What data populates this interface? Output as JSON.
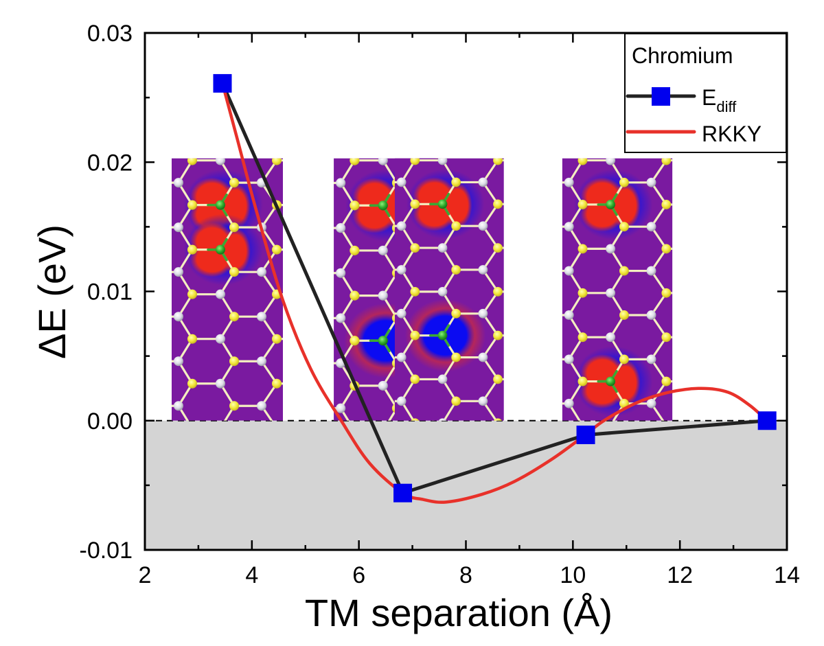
{
  "chart_data": {
    "type": "line",
    "title": "",
    "xlabel": "TM separation (Å)",
    "ylabel": "ΔE (eV)",
    "xlim": [
      2,
      14
    ],
    "ylim": [
      -0.01,
      0.03
    ],
    "xticks": [
      2,
      4,
      6,
      8,
      10,
      12,
      14
    ],
    "xtick_labels": [
      "2",
      "4",
      "6",
      "8",
      "10",
      "12",
      "14"
    ],
    "yticks": [
      -0.01,
      0.0,
      0.01,
      0.02,
      0.03
    ],
    "ytick_labels": [
      "-0.01",
      "0.00",
      "0.01",
      "0.02",
      "0.03"
    ],
    "grid": false,
    "zero_line": {
      "y": 0.0,
      "style": "dashed"
    },
    "negative_region_shaded": true,
    "shade_color": "#d4d4d4",
    "legend": {
      "position": "top-right",
      "title": "Chromium",
      "entries": [
        {
          "label_main": "E",
          "label_sub": "diff",
          "color": "#222222",
          "marker": "square",
          "marker_color": "#0000ee"
        },
        {
          "label_main": "RKKY",
          "label_sub": "",
          "color": "#e8312a",
          "marker": "none"
        }
      ]
    },
    "series": [
      {
        "name": "E_diff",
        "style": "line+square-markers",
        "line_color": "#222222",
        "marker_color": "#0000ee",
        "x": [
          3.45,
          6.82,
          10.24,
          13.63
        ],
        "y": [
          0.0261,
          -0.0056,
          -0.0011,
          0.0
        ]
      },
      {
        "name": "RKKY",
        "style": "smooth-line",
        "line_color": "#e8312a",
        "x": [
          3.45,
          3.72,
          4.1,
          4.58,
          5.1,
          5.67,
          6.2,
          6.82,
          7.2,
          7.63,
          8.3,
          8.91,
          9.6,
          10.2,
          10.58,
          11.2,
          11.8,
          12.4,
          12.9,
          13.3,
          13.63
        ],
        "y": [
          0.0261,
          0.0219,
          0.016,
          0.0093,
          0.004,
          0.0,
          -0.0033,
          -0.0056,
          -0.0061,
          -0.0063,
          -0.0057,
          -0.0047,
          -0.003,
          -0.0012,
          0.0,
          0.0014,
          0.0022,
          0.0025,
          0.0022,
          0.0012,
          0.0
        ]
      }
    ],
    "insets": [
      {
        "name": "inset-separation-1",
        "x_range": [
          2.5,
          4.58
        ],
        "y_range": [
          0.0,
          0.0203
        ],
        "tm_sites": [
          [
            1,
            1
          ],
          [
            1,
            2
          ]
        ],
        "polarity": "red"
      },
      {
        "name": "inset-separation-2",
        "x_range": [
          5.53,
          7.63
        ],
        "y_range": [
          0.0,
          0.0203
        ],
        "tm_sites": [
          [
            1,
            1
          ],
          [
            1,
            4
          ]
        ],
        "polarity": "mixed"
      },
      {
        "name": "inset-separation-3",
        "x_range": [
          6.67,
          8.71
        ],
        "y_range": [
          0.0,
          0.0203
        ],
        "tm_sites": [
          [
            1,
            1
          ],
          [
            1,
            4
          ]
        ],
        "polarity": "mixed"
      },
      {
        "name": "inset-separation-4",
        "x_range": [
          9.8,
          11.86
        ],
        "y_range": [
          0.0,
          0.0203
        ],
        "tm_sites": [
          [
            1,
            1
          ],
          [
            1,
            5
          ]
        ],
        "polarity": "red"
      }
    ]
  }
}
